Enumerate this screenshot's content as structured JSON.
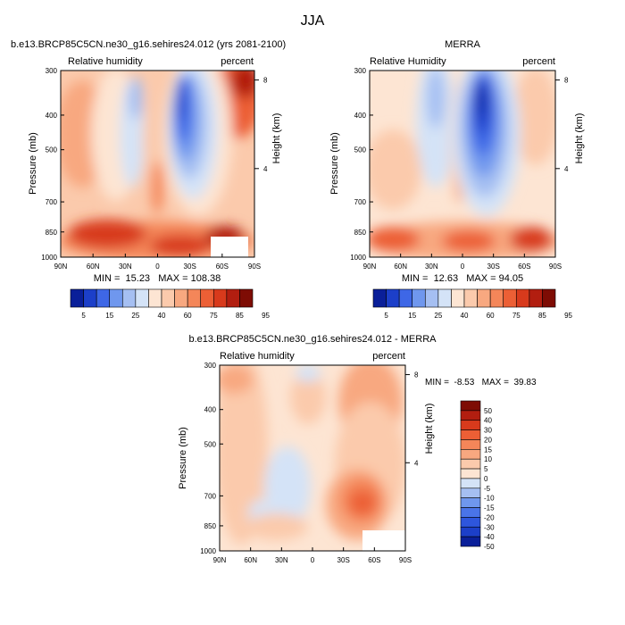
{
  "page_title": "JJA",
  "colors": {
    "pos_scale": [
      "#0a1f99",
      "#1c3fc9",
      "#3e67e6",
      "#6f97ee",
      "#a5bff2",
      "#d4e3f7",
      "#fde5d3",
      "#fbcaac",
      "#f8a880",
      "#f48659",
      "#ec5f35",
      "#d83a1c",
      "#b21e10",
      "#7e0c04"
    ],
    "diff_scale": [
      "#0a1f99",
      "#1c3fc9",
      "#2e56dd",
      "#4a74e8",
      "#6f97ee",
      "#a5bff2",
      "#d4e3f7",
      "#fde5d3",
      "#fbcaac",
      "#f8a880",
      "#f48659",
      "#ec5f35",
      "#d83a1c",
      "#b21e10",
      "#7e0c04"
    ],
    "missing": "#ffffff"
  },
  "chart_data": [
    {
      "type": "heatmap",
      "panel": "model",
      "title": "b.e13.BRCP85C5CN.ne30_g16.sehires24.012 (yrs 2081-2100)",
      "left_label": "Relative humidity",
      "right_label": "percent",
      "xlabel": "",
      "ylabel": "Pressure (mb)",
      "right_axis_label": "Height (km)",
      "xticks": [
        "90N",
        "60N",
        "30N",
        "0",
        "30S",
        "60S",
        "90S"
      ],
      "yticks": [
        "300",
        "400",
        "500",
        "700",
        "850",
        "1000"
      ],
      "right_ticks": [
        "8",
        "4"
      ],
      "ylim": [
        300,
        1000
      ],
      "stats": "MIN =  15.23   MAX = 108.38",
      "min": 15.23,
      "max": 108.38,
      "colorbar": {
        "labels": [
          "5",
          "15",
          "25",
          "40",
          "60",
          "75",
          "85",
          "95"
        ]
      }
    },
    {
      "type": "heatmap",
      "panel": "obs",
      "title": "MERRA",
      "left_label": "Relative Humidity",
      "right_label": "percent",
      "xlabel": "",
      "ylabel": "Pressure (mb)",
      "right_axis_label": "Height (km)",
      "xticks": [
        "90N",
        "60N",
        "30N",
        "0",
        "30S",
        "60S",
        "90S"
      ],
      "yticks": [
        "300",
        "400",
        "500",
        "700",
        "850",
        "1000"
      ],
      "right_ticks": [
        "8",
        "4"
      ],
      "ylim": [
        300,
        1000
      ],
      "stats": "MIN =  12.63   MAX = 94.05",
      "min": 12.63,
      "max": 94.05,
      "colorbar": {
        "labels": [
          "5",
          "15",
          "25",
          "40",
          "60",
          "75",
          "85",
          "95"
        ]
      }
    },
    {
      "type": "heatmap",
      "panel": "diff",
      "title": "b.e13.BRCP85C5CN.ne30_g16.sehires24.012 - MERRA",
      "left_label": "Relative humidity",
      "right_label": "percent",
      "xlabel": "",
      "ylabel": "Pressure (mb)",
      "right_axis_label": "Height (km)",
      "xticks": [
        "90N",
        "60N",
        "30N",
        "0",
        "30S",
        "60S",
        "90S"
      ],
      "yticks": [
        "300",
        "400",
        "500",
        "700",
        "850",
        "1000"
      ],
      "right_ticks": [
        "8",
        "4"
      ],
      "ylim": [
        300,
        1000
      ],
      "stats": "MIN =  -8.53   MAX =  39.83",
      "min": -8.53,
      "max": 39.83,
      "colorbar": {
        "labels": [
          "50",
          "40",
          "30",
          "20",
          "15",
          "10",
          "5",
          "0",
          "-5",
          "-10",
          "-15",
          "-20",
          "-30",
          "-40",
          "-50"
        ]
      }
    }
  ]
}
